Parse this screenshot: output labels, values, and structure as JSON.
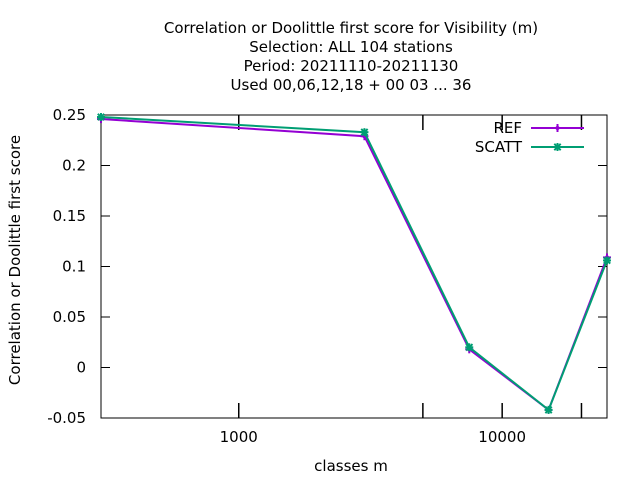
{
  "chart_data": {
    "type": "line",
    "title": [
      "Correlation or Doolittle first score  for Visibility (m)",
      "Selection: ALL    104 stations",
      "Period: 20211110-20211130",
      "Used  00,06,12,18 + 00 03 ... 36"
    ],
    "xlabel": "classes m",
    "ylabel": "Correlation or Doolittle first score",
    "xscale": "log",
    "xlim": [
      300,
      25000
    ],
    "ylim": [
      -0.05,
      0.25
    ],
    "x_ticks": [
      {
        "value": 1000,
        "label": "1000"
      },
      {
        "value": 10000,
        "label": "10000"
      }
    ],
    "x_minor_ticks": [
      5000,
      20000
    ],
    "y_ticks": [
      -0.05,
      0,
      0.05,
      0.1,
      0.15,
      0.2,
      0.25
    ],
    "y_tick_labels": [
      "-0.05",
      "0",
      "0.05",
      "0.1",
      "0.15",
      "0.2",
      "0.25"
    ],
    "grid": false,
    "legend_position": "top-right",
    "x": [
      300,
      3000,
      7500,
      15000,
      25000
    ],
    "series": [
      {
        "name": "REF",
        "color": "#9400d3",
        "marker": "plus",
        "values": [
          0.246,
          0.229,
          0.018,
          -0.042,
          0.109
        ]
      },
      {
        "name": "SCATT",
        "color": "#009e73",
        "marker": "star",
        "values": [
          0.248,
          0.233,
          0.02,
          -0.042,
          0.106
        ]
      }
    ]
  }
}
